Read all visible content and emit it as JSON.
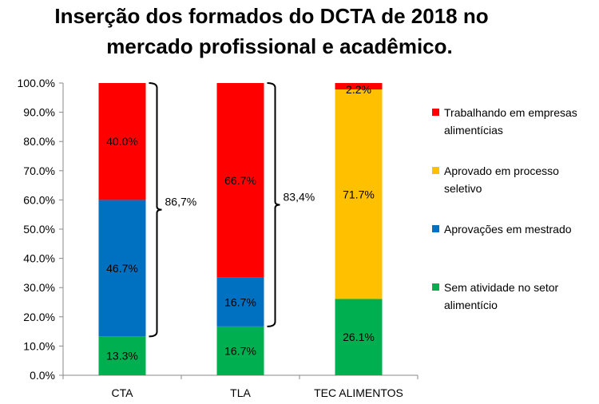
{
  "chart_data": {
    "type": "bar",
    "stacked": true,
    "title": [
      "Inserção dos formados do DCTA de 2018 no",
      "mercado profissional e acadêmico."
    ],
    "categories": [
      "CTA",
      "TLA",
      "TEC ALIMENTOS"
    ],
    "ylim": [
      0,
      100
    ],
    "yticks": [
      "0.0%",
      "10.0%",
      "20.0%",
      "30.0%",
      "40.0%",
      "50.0%",
      "60.0%",
      "70.0%",
      "80.0%",
      "90.0%",
      "100.0%"
    ],
    "grid": false,
    "legend_position": "right",
    "series": [
      {
        "name": "Sem atividade no setor alimentício",
        "color": "#00B050",
        "values": [
          13.3,
          16.7,
          26.1
        ],
        "labels": [
          "13.3%",
          "16.7%",
          "26.1%"
        ]
      },
      {
        "name": "Aprovações em mestrado",
        "color": "#0070C0",
        "values": [
          46.7,
          16.7,
          0
        ],
        "labels": [
          "46.7%",
          "16.7%",
          ""
        ]
      },
      {
        "name": "Aprovado em processo seletivo",
        "color": "#FFC000",
        "values": [
          0,
          0,
          71.7
        ],
        "labels": [
          "",
          "",
          "71.7%"
        ]
      },
      {
        "name": "Trabalhando em empresas alimentícias",
        "color": "#FF0000",
        "values": [
          40.0,
          66.7,
          2.2
        ],
        "labels": [
          "40.0%",
          "66.7%",
          "2.2%"
        ]
      }
    ],
    "legend": [
      {
        "lines": [
          "Trabalhando em empresas",
          "alimentícias"
        ],
        "color": "#FF0000"
      },
      {
        "lines": [
          "Aprovado em processo",
          "seletivo"
        ],
        "color": "#FFC000"
      },
      {
        "lines": [
          "Aprovações em mestrado"
        ],
        "color": "#0070C0"
      },
      {
        "lines": [
          "Sem atividade no setor",
          "alimentício"
        ],
        "color": "#00B050"
      }
    ],
    "annotations": [
      {
        "category": "CTA",
        "from": 13.3,
        "to": 100,
        "text": "86,7%"
      },
      {
        "category": "TLA",
        "from": 16.7,
        "to": 100,
        "text": "83,4%"
      }
    ]
  }
}
